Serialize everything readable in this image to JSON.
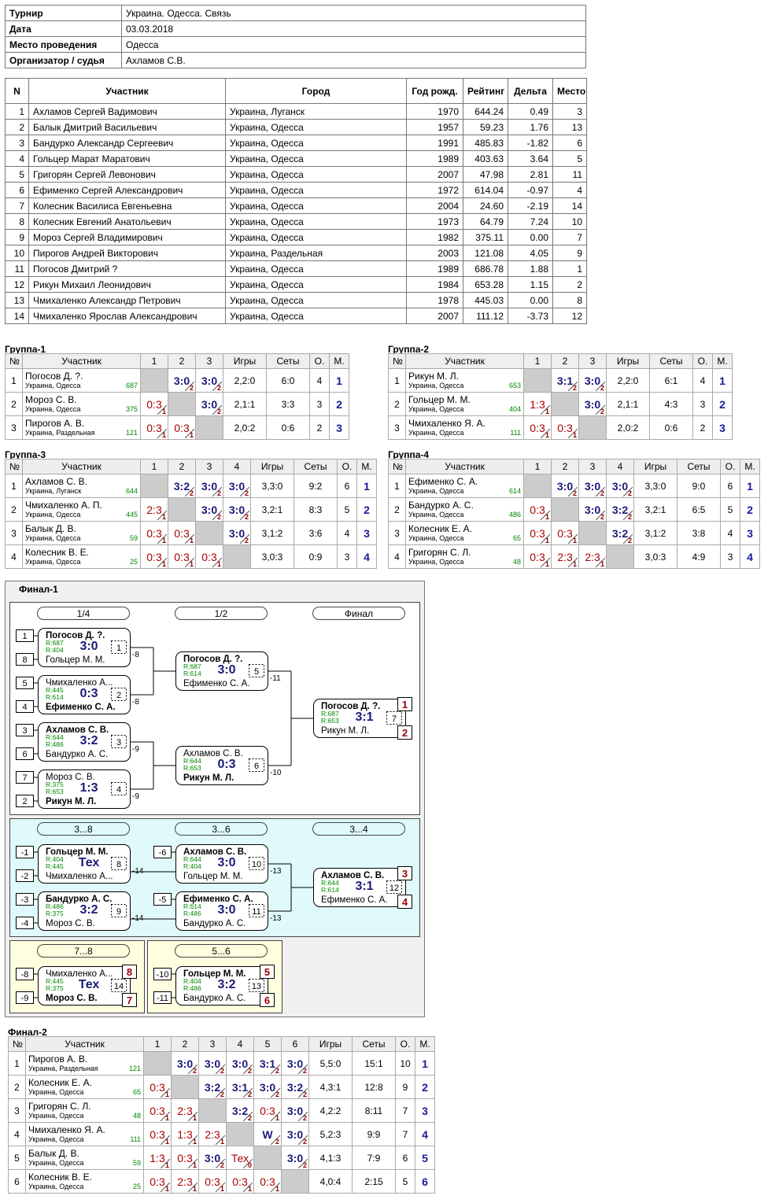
{
  "info": {
    "rows": [
      [
        "Турнир",
        "Украина. Одесса. Связь"
      ],
      [
        "Дата",
        "03.03.2018"
      ],
      [
        "Место проведения",
        "Одесса"
      ],
      [
        "Организатор / судья",
        "Ахламов С.В."
      ]
    ]
  },
  "participants": {
    "header": [
      "N",
      "Участник",
      "Город",
      "Год рожд.",
      "Рейтинг",
      "Дельта",
      "Место"
    ],
    "rows": [
      [
        "1",
        "Ахламов Сергей Вадимович",
        "Украина, Луганск",
        "1970",
        "644.24",
        "0.49",
        "3"
      ],
      [
        "2",
        "Балык Дмитрий Васильевич",
        "Украина, Одесса",
        "1957",
        "59.23",
        "1.76",
        "13"
      ],
      [
        "3",
        "Бандурко Александр Сергеевич",
        "Украина, Одесса",
        "1991",
        "485.83",
        "-1.82",
        "6"
      ],
      [
        "4",
        "Гольцер Марат Маратович",
        "Украина, Одесса",
        "1989",
        "403.63",
        "3.64",
        "5"
      ],
      [
        "5",
        "Григорян Сергей Левонович",
        "Украина, Одесса",
        "2007",
        "47.98",
        "2.81",
        "11"
      ],
      [
        "6",
        "Ефименко Сергей Александрович",
        "Украина, Одесса",
        "1972",
        "614.04",
        "-0.97",
        "4"
      ],
      [
        "7",
        "Колесник Василиса Евгеньевна",
        "Украина, Одесса",
        "2004",
        "24.60",
        "-2.19",
        "14"
      ],
      [
        "8",
        "Колесник Евгений Анатольевич",
        "Украина, Одесса",
        "1973",
        "64.79",
        "7.24",
        "10"
      ],
      [
        "9",
        "Мороз Сергей Владимирович",
        "Украина, Одесса",
        "1982",
        "375.11",
        "0.00",
        "7"
      ],
      [
        "10",
        "Пирогов Андрей Викторович",
        "Украина, Раздельная",
        "2003",
        "121.08",
        "4.05",
        "9"
      ],
      [
        "11",
        "Погосов Дмитрий ?",
        "Украина, Одесса",
        "1989",
        "686.78",
        "1.88",
        "1"
      ],
      [
        "12",
        "Рикун Михаил Леонидович",
        "Украина, Одесса",
        "1984",
        "653.28",
        "1.15",
        "2"
      ],
      [
        "13",
        "Чмихаленко Александр Петрович",
        "Украина, Одесса",
        "1978",
        "445.03",
        "0.00",
        "8"
      ],
      [
        "14",
        "Чмихаленко Ярослав Александрович",
        "Украина, Одесса",
        "2007",
        "111.12",
        "-3.73",
        "12"
      ]
    ]
  },
  "groups": [
    {
      "title": "Группа-1",
      "header": [
        "№",
        "Участник",
        "1",
        "2",
        "3",
        "Игры",
        "Сеты",
        "О.",
        "М."
      ],
      "rows": [
        {
          "n": "1",
          "name": "Погосов Д. ?.",
          "city": "Украина, Одесса",
          "rating": "687",
          "cells": [
            null,
            {
              "score": "3:0",
              "pts": "2"
            },
            {
              "score": "3:0",
              "pts": "2"
            }
          ],
          "games": "2,2:0",
          "sets": "6:0",
          "points": "4",
          "place": "1"
        },
        {
          "n": "2",
          "name": "Мороз С. В.",
          "city": "Украина, Одесса",
          "rating": "375",
          "cells": [
            {
              "score": "0:3",
              "pts": "1"
            },
            null,
            {
              "score": "3:0",
              "pts": "2"
            }
          ],
          "games": "2,1:1",
          "sets": "3:3",
          "points": "3",
          "place": "2"
        },
        {
          "n": "3",
          "name": "Пирогов А. В.",
          "city": "Украина, Раздельная",
          "rating": "121",
          "cells": [
            {
              "score": "0:3",
              "pts": "1"
            },
            {
              "score": "0:3",
              "pts": "1"
            },
            null
          ],
          "games": "2,0:2",
          "sets": "0:6",
          "points": "2",
          "place": "3"
        }
      ]
    },
    {
      "title": "Группа-2",
      "header": [
        "№",
        "Участник",
        "1",
        "2",
        "3",
        "Игры",
        "Сеты",
        "О.",
        "М."
      ],
      "rows": [
        {
          "n": "1",
          "name": "Рикун М. Л.",
          "city": "Украина, Одесса",
          "rating": "653",
          "cells": [
            null,
            {
              "score": "3:1",
              "pts": "2"
            },
            {
              "score": "3:0",
              "pts": "2"
            }
          ],
          "games": "2,2:0",
          "sets": "6:1",
          "points": "4",
          "place": "1"
        },
        {
          "n": "2",
          "name": "Гольцер М. М.",
          "city": "Украина, Одесса",
          "rating": "404",
          "cells": [
            {
              "score": "1:3",
              "pts": "1"
            },
            null,
            {
              "score": "3:0",
              "pts": "2"
            }
          ],
          "games": "2,1:1",
          "sets": "4:3",
          "points": "3",
          "place": "2"
        },
        {
          "n": "3",
          "name": "Чмихаленко Я. А.",
          "city": "Украина, Одесса",
          "rating": "111",
          "cells": [
            {
              "score": "0:3",
              "pts": "1"
            },
            {
              "score": "0:3",
              "pts": "1"
            },
            null
          ],
          "games": "2,0:2",
          "sets": "0:6",
          "points": "2",
          "place": "3"
        }
      ]
    },
    {
      "title": "Группа-3",
      "header": [
        "№",
        "Участник",
        "1",
        "2",
        "3",
        "4",
        "Игры",
        "Сеты",
        "О.",
        "М."
      ],
      "rows": [
        {
          "n": "1",
          "name": "Ахламов С. В.",
          "city": "Украина, Луганск",
          "rating": "644",
          "cells": [
            null,
            {
              "score": "3:2",
              "pts": "2"
            },
            {
              "score": "3:0",
              "pts": "2"
            },
            {
              "score": "3:0",
              "pts": "2"
            }
          ],
          "games": "3,3:0",
          "sets": "9:2",
          "points": "6",
          "place": "1"
        },
        {
          "n": "2",
          "name": "Чмихаленко А. П.",
          "city": "Украина, Одесса",
          "rating": "445",
          "cells": [
            {
              "score": "2:3",
              "pts": "1"
            },
            null,
            {
              "score": "3:0",
              "pts": "2"
            },
            {
              "score": "3:0",
              "pts": "2"
            }
          ],
          "games": "3,2:1",
          "sets": "8:3",
          "points": "5",
          "place": "2"
        },
        {
          "n": "3",
          "name": "Балык Д. В.",
          "city": "Украина, Одесса",
          "rating": "59",
          "cells": [
            {
              "score": "0:3",
              "pts": "1"
            },
            {
              "score": "0:3",
              "pts": "1"
            },
            null,
            {
              "score": "3:0",
              "pts": "2"
            }
          ],
          "games": "3,1:2",
          "sets": "3:6",
          "points": "4",
          "place": "3"
        },
        {
          "n": "4",
          "name": "Колесник В. Е.",
          "city": "Украина, Одесса",
          "rating": "25",
          "cells": [
            {
              "score": "0:3",
              "pts": "1"
            },
            {
              "score": "0:3",
              "pts": "1"
            },
            {
              "score": "0:3",
              "pts": "1"
            },
            null
          ],
          "games": "3,0:3",
          "sets": "0:9",
          "points": "3",
          "place": "4"
        }
      ]
    },
    {
      "title": "Группа-4",
      "header": [
        "№",
        "Участник",
        "1",
        "2",
        "3",
        "4",
        "Игры",
        "Сеты",
        "О.",
        "М."
      ],
      "rows": [
        {
          "n": "1",
          "name": "Ефименко С. А.",
          "city": "Украина, Одесса",
          "rating": "614",
          "cells": [
            null,
            {
              "score": "3:0",
              "pts": "2"
            },
            {
              "score": "3:0",
              "pts": "2"
            },
            {
              "score": "3:0",
              "pts": "2"
            }
          ],
          "games": "3,3:0",
          "sets": "9:0",
          "points": "6",
          "place": "1"
        },
        {
          "n": "2",
          "name": "Бандурко А. С.",
          "city": "Украина, Одесса",
          "rating": "486",
          "cells": [
            {
              "score": "0:3",
              "pts": "1"
            },
            null,
            {
              "score": "3:0",
              "pts": "2"
            },
            {
              "score": "3:2",
              "pts": "2"
            }
          ],
          "games": "3,2:1",
          "sets": "6:5",
          "points": "5",
          "place": "2"
        },
        {
          "n": "3",
          "name": "Колесник Е. А.",
          "city": "Украина, Одесса",
          "rating": "65",
          "cells": [
            {
              "score": "0:3",
              "pts": "1"
            },
            {
              "score": "0:3",
              "pts": "1"
            },
            null,
            {
              "score": "3:2",
              "pts": "2"
            }
          ],
          "games": "3,1:2",
          "sets": "3:8",
          "points": "4",
          "place": "3"
        },
        {
          "n": "4",
          "name": "Григорян С. Л.",
          "city": "Украина, Одесса",
          "rating": "48",
          "cells": [
            {
              "score": "0:3",
              "pts": "1"
            },
            {
              "score": "2:3",
              "pts": "1"
            },
            {
              "score": "2:3",
              "pts": "1"
            },
            null
          ],
          "games": "3,0:3",
          "sets": "4:9",
          "points": "3",
          "place": "4"
        }
      ]
    }
  ],
  "final1": {
    "title": "Финал-1",
    "sections": [
      [
        "1/4",
        "1/2",
        "Финал"
      ],
      [
        "3...8",
        "3...6",
        "3...4"
      ],
      [
        "7...8"
      ],
      [
        "5...6"
      ]
    ],
    "matches": [
      {
        "seeds": [
          "1",
          "8"
        ],
        "top": "Погосов Д. ?.",
        "r_top": "R:687",
        "r_bottom": "R:404",
        "score": "3:0",
        "bottom": "Гольцер М. М.",
        "num": "1",
        "loser": "-8",
        "winner": "top"
      },
      {
        "seeds": [
          "5",
          "4"
        ],
        "top": "Чмихаленко А...",
        "r_top": "R:445",
        "r_bottom": "R:614",
        "score": "0:3",
        "bottom": "Ефименко С. А.",
        "num": "2",
        "loser": "-8",
        "winner": "bottom"
      },
      {
        "seeds": [
          "3",
          "6"
        ],
        "top": "Ахламов С. В.",
        "r_top": "R:644",
        "r_bottom": "R:486",
        "score": "3:2",
        "bottom": "Бандурко А. С.",
        "num": "3",
        "loser": "-9",
        "winner": "top"
      },
      {
        "seeds": [
          "7",
          "2"
        ],
        "top": "Мороз С. В.",
        "r_top": "R:375",
        "r_bottom": "R:653",
        "score": "1:3",
        "bottom": "Рикун М. Л.",
        "num": "4",
        "loser": "-9",
        "winner": "bottom"
      },
      {
        "top": "Погосов Д. ?.",
        "r_top": "R:687",
        "r_bottom": "R:614",
        "score": "3:0",
        "bottom": "Ефименко С. А.",
        "num": "5",
        "loser": "-11",
        "winner": "top"
      },
      {
        "top": "Ахламов С. В.",
        "r_top": "R:644",
        "r_bottom": "R:653",
        "score": "0:3",
        "bottom": "Рикун М. Л.",
        "num": "6",
        "loser": "-10",
        "winner": "bottom"
      },
      {
        "top": "Погосов Д. ?.",
        "r_top": "R:687",
        "r_bottom": "R:653",
        "score": "3:1",
        "bottom": "Рикун М. Л.",
        "num": "7",
        "places": [
          "1",
          "2"
        ],
        "winner": "top"
      },
      {
        "seeds": [
          "-1",
          "-2"
        ],
        "top": "Гольцер М. М.",
        "r_top": "R:404",
        "r_bottom": "R:445",
        "score": "Тех",
        "bottom": "Чмихаленко А...",
        "num": "8",
        "loser": "-14",
        "winner": "top"
      },
      {
        "seeds": [
          "-3",
          "-4"
        ],
        "top": "Бандурко А. С.",
        "r_top": "R:486",
        "r_bottom": "R:375",
        "score": "3:2",
        "bottom": "Мороз С. В.",
        "num": "9",
        "loser": "-14",
        "winner": "top"
      },
      {
        "seeds": [
          "-6"
        ],
        "top": "Ахламов С. В.",
        "r_top": "R:644",
        "r_bottom": "R:404",
        "score": "3:0",
        "bottom": "Гольцер М. М.",
        "num": "10",
        "loser": "-13",
        "winner": "top"
      },
      {
        "seeds": [
          "-5"
        ],
        "top": "Ефименко С. А.",
        "r_top": "R:614",
        "r_bottom": "R:486",
        "score": "3:0",
        "bottom": "Бандурко А. С.",
        "num": "11",
        "loser": "-13",
        "winner": "top"
      },
      {
        "top": "Ахламов С. В.",
        "r_top": "R:644",
        "r_bottom": "R:614",
        "score": "3:1",
        "bottom": "Ефименко С. А.",
        "num": "12",
        "places": [
          "3",
          "4"
        ],
        "winner": "top"
      },
      {
        "seeds": [
          "-8",
          "-9"
        ],
        "top": "Чмихаленко А...",
        "r_top": "R:445",
        "r_bottom": "R:375",
        "score": "Тех",
        "bottom": "Мороз С. В.",
        "num": "14",
        "places": [
          "8",
          "7"
        ],
        "winner": "bottom"
      },
      {
        "seeds": [
          "-10",
          "-11"
        ],
        "top": "Гольцер М. М.",
        "r_top": "R:404",
        "r_bottom": "R:486",
        "score": "3:2",
        "bottom": "Бандурко А. С.",
        "num": "13",
        "places": [
          "5",
          "6"
        ],
        "winner": "top"
      }
    ]
  },
  "final2": {
    "title": "Финал-2",
    "header": [
      "№",
      "Участник",
      "1",
      "2",
      "3",
      "4",
      "5",
      "6",
      "Игры",
      "Сеты",
      "О.",
      "М."
    ],
    "rows": [
      {
        "n": "1",
        "name": "Пирогов А. В.",
        "city": "Украина, Раздельная",
        "rating": "121",
        "cells": [
          null,
          {
            "score": "3:0",
            "pts": "2"
          },
          {
            "score": "3:0",
            "pts": "2"
          },
          {
            "score": "3:0",
            "pts": "2"
          },
          {
            "score": "3:1",
            "pts": "2"
          },
          {
            "score": "3:0",
            "pts": "2"
          }
        ],
        "games": "5,5:0",
        "sets": "15:1",
        "points": "10",
        "place": "1"
      },
      {
        "n": "2",
        "name": "Колесник Е. А.",
        "city": "Украина, Одесса",
        "rating": "65",
        "cells": [
          {
            "score": "0:3",
            "pts": "1"
          },
          null,
          {
            "score": "3:2",
            "pts": "2"
          },
          {
            "score": "3:1",
            "pts": "2"
          },
          {
            "score": "3:0",
            "pts": "2"
          },
          {
            "score": "3:2",
            "pts": "2"
          }
        ],
        "games": "4,3:1",
        "sets": "12:8",
        "points": "9",
        "place": "2"
      },
      {
        "n": "3",
        "name": "Григорян С. Л.",
        "city": "Украина, Одесса",
        "rating": "48",
        "cells": [
          {
            "score": "0:3",
            "pts": "1"
          },
          {
            "score": "2:3",
            "pts": "1"
          },
          null,
          {
            "score": "3:2",
            "pts": "2"
          },
          {
            "score": "0:3",
            "pts": "1"
          },
          {
            "score": "3:0",
            "pts": "2"
          }
        ],
        "games": "4,2:2",
        "sets": "8:11",
        "points": "7",
        "place": "3"
      },
      {
        "n": "4",
        "name": "Чмихаленко Я. А.",
        "city": "Украина, Одесса",
        "rating": "111",
        "cells": [
          {
            "score": "0:3",
            "pts": "1"
          },
          {
            "score": "1:3",
            "pts": "1"
          },
          {
            "score": "2:3",
            "pts": "1"
          },
          null,
          {
            "score": "W",
            "pts": "2"
          },
          {
            "score": "3:0",
            "pts": "2"
          }
        ],
        "games": "5,2:3",
        "sets": "9:9",
        "points": "7",
        "place": "4"
      },
      {
        "n": "5",
        "name": "Балык Д. В.",
        "city": "Украина, Одесса",
        "rating": "59",
        "cells": [
          {
            "score": "1:3",
            "pts": "1"
          },
          {
            "score": "0:3",
            "pts": "1"
          },
          {
            "score": "3:0",
            "pts": "2"
          },
          {
            "score": "Тех",
            "pts": "0"
          },
          null,
          {
            "score": "3:0",
            "pts": "2"
          }
        ],
        "games": "4,1:3",
        "sets": "7:9",
        "points": "6",
        "place": "5"
      },
      {
        "n": "6",
        "name": "Колесник В. Е.",
        "city": "Украина, Одесса",
        "rating": "25",
        "cells": [
          {
            "score": "0:3",
            "pts": "1"
          },
          {
            "score": "2:3",
            "pts": "1"
          },
          {
            "score": "0:3",
            "pts": "1"
          },
          {
            "score": "0:3",
            "pts": "1"
          },
          {
            "score": "0:3",
            "pts": "1"
          },
          null
        ],
        "games": "4,0:4",
        "sets": "2:15",
        "points": "5",
        "place": "6"
      }
    ]
  }
}
